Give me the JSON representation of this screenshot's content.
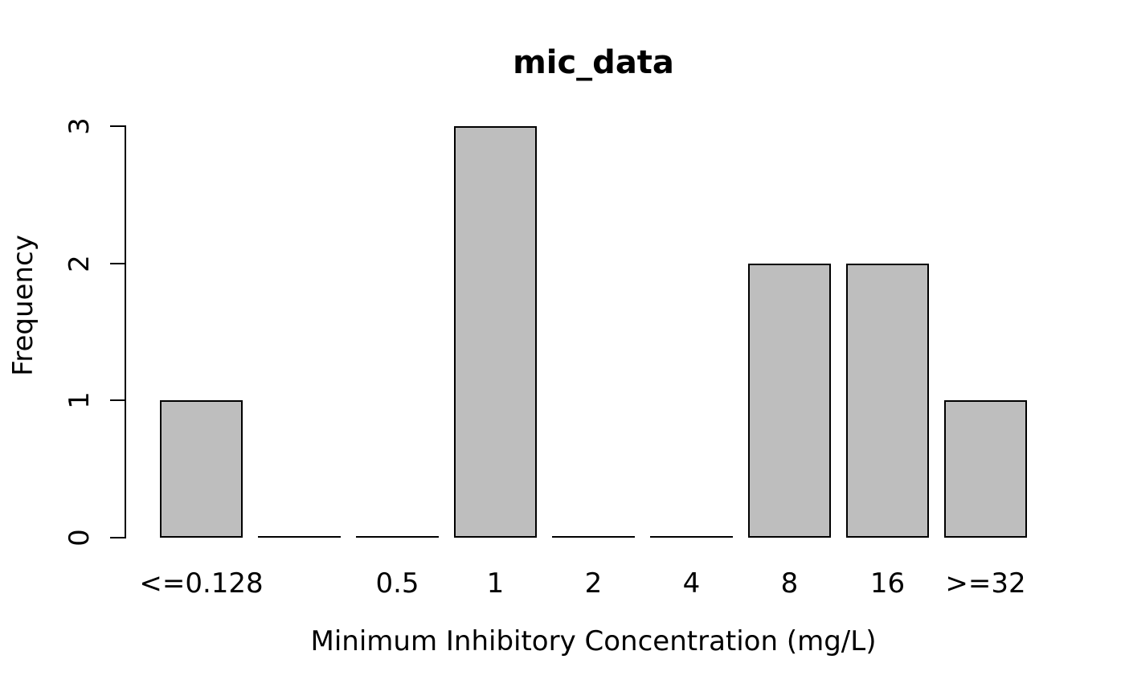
{
  "chart_data": {
    "type": "bar",
    "title": "mic_data",
    "xlabel": "Minimum Inhibitory Concentration (mg/L)",
    "ylabel": "Frequency",
    "categories": [
      "<=0.128",
      "",
      "0.5",
      "1",
      "2",
      "4",
      "8",
      "16",
      ">=32"
    ],
    "values": [
      1,
      0,
      0,
      3,
      0,
      0,
      2,
      2,
      1
    ],
    "yticks": [
      "0",
      "1",
      "2",
      "3"
    ],
    "ylim": [
      0,
      3
    ],
    "grid": false,
    "legend_position": "none",
    "colors": {
      "bar_fill": "#bebebe",
      "bar_border": "#000000",
      "axis": "#000000",
      "text": "#000000",
      "background": "#ffffff"
    }
  }
}
